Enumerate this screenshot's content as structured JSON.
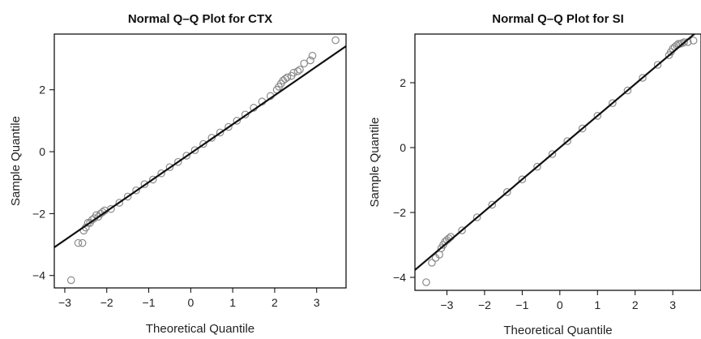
{
  "chart_data": [
    {
      "type": "scatter",
      "title": "Normal Q–Q Plot for CTX",
      "xlabel": "Theoretical Quantile",
      "ylabel": "Sample Quantile",
      "xlim": [
        -3.25,
        3.7
      ],
      "ylim": [
        -4.4,
        3.8
      ],
      "xticks": [
        -3,
        -2,
        -1,
        0,
        1,
        2,
        3
      ],
      "xtick_labels": [
        "−3",
        "−2",
        "−1",
        "0",
        "1",
        "2",
        "3"
      ],
      "yticks": [
        -4,
        -2,
        0,
        2
      ],
      "ytick_labels": [
        "−4",
        "−2",
        "0",
        "2"
      ],
      "reference_line": {
        "intercept": -0.05,
        "slope": 0.935
      },
      "marker_color": "#8a8a8a",
      "line_color": "#111111",
      "points": {
        "x": [
          -2.85,
          -2.68,
          -2.58,
          -2.55,
          -2.5,
          -2.45,
          -2.4,
          -2.35,
          -2.3,
          -2.25,
          -2.2,
          -2.15,
          -2.1,
          -2.05,
          -1.9,
          -1.7,
          -1.5,
          -1.3,
          -1.1,
          -0.9,
          -0.7,
          -0.5,
          -0.3,
          -0.1,
          0.1,
          0.3,
          0.5,
          0.7,
          0.9,
          1.1,
          1.3,
          1.5,
          1.7,
          1.9,
          2.05,
          2.1,
          2.15,
          2.2,
          2.25,
          2.3,
          2.4,
          2.45,
          2.55,
          2.6,
          2.7,
          2.85,
          2.9,
          3.45
        ],
        "y": [
          -4.15,
          -2.95,
          -2.95,
          -2.55,
          -2.45,
          -2.3,
          -2.3,
          -2.2,
          -2.15,
          -2.05,
          -2.1,
          -2.0,
          -1.95,
          -1.9,
          -1.85,
          -1.65,
          -1.45,
          -1.25,
          -1.05,
          -0.9,
          -0.7,
          -0.5,
          -0.33,
          -0.13,
          0.05,
          0.25,
          0.45,
          0.62,
          0.8,
          1.0,
          1.2,
          1.42,
          1.62,
          1.8,
          2.0,
          2.1,
          2.2,
          2.3,
          2.35,
          2.4,
          2.45,
          2.55,
          2.6,
          2.65,
          2.85,
          2.95,
          3.1,
          3.6
        ]
      }
    },
    {
      "type": "scatter",
      "title": "Normal Q–Q Plot for SI",
      "xlabel": "Theoretical Quantile",
      "ylabel": "Sample Quantile",
      "xlim": [
        -3.85,
        3.75
      ],
      "ylim": [
        -4.4,
        3.5
      ],
      "xticks": [
        -3,
        -2,
        -1,
        0,
        1,
        2,
        3
      ],
      "xtick_labels": [
        "−3",
        "−2",
        "−1",
        "0",
        "1",
        "2",
        "3"
      ],
      "yticks": [
        -4,
        -2,
        0,
        2
      ],
      "ytick_labels": [
        "−4",
        "−2",
        "0",
        "2"
      ],
      "reference_line": {
        "intercept": 0.0,
        "slope": 0.98
      },
      "marker_color": "#8a8a8a",
      "line_color": "#111111",
      "points": {
        "x": [
          -3.55,
          -3.4,
          -3.3,
          -3.2,
          -3.15,
          -3.1,
          -3.05,
          -3.0,
          -2.95,
          -2.9,
          -2.6,
          -2.2,
          -1.8,
          -1.4,
          -1.0,
          -0.6,
          -0.2,
          0.2,
          0.6,
          1.0,
          1.4,
          1.8,
          2.2,
          2.6,
          2.9,
          2.95,
          3.0,
          3.05,
          3.1,
          3.15,
          3.2,
          3.25,
          3.3,
          3.4,
          3.55
        ],
        "y": [
          -4.15,
          -3.55,
          -3.4,
          -3.3,
          -3.1,
          -3.0,
          -2.9,
          -2.85,
          -2.8,
          -2.75,
          -2.55,
          -2.15,
          -1.76,
          -1.37,
          -0.98,
          -0.59,
          -0.2,
          0.2,
          0.59,
          0.98,
          1.37,
          1.76,
          2.15,
          2.55,
          2.85,
          2.95,
          3.05,
          3.1,
          3.15,
          3.2,
          3.2,
          3.22,
          3.25,
          3.25,
          3.3
        ]
      }
    }
  ]
}
